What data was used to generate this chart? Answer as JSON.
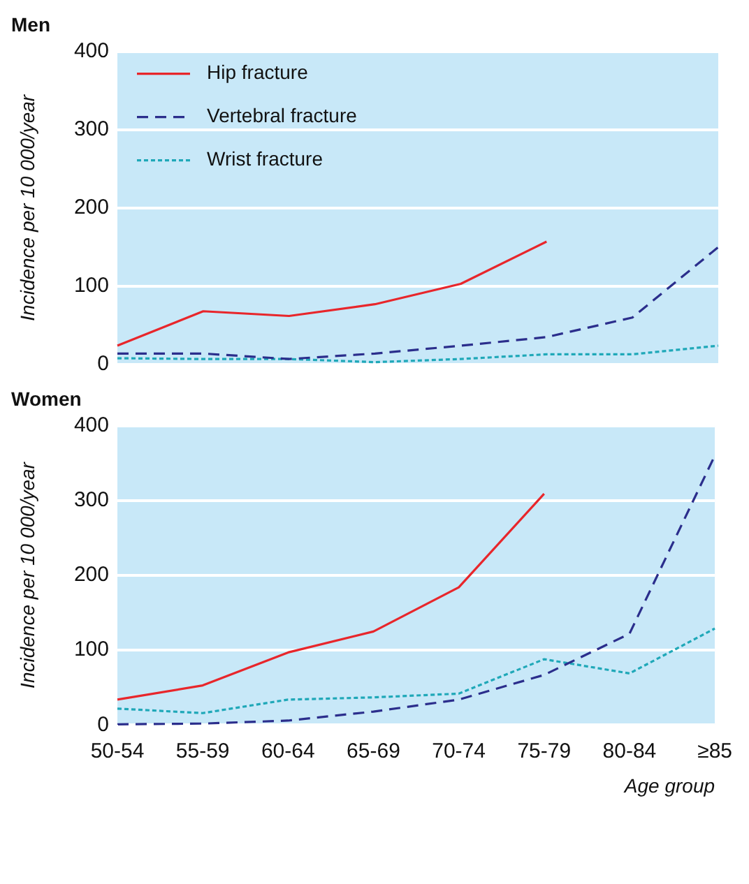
{
  "chart_data": [
    {
      "type": "line",
      "title": "Men",
      "ylabel": "Incidence per 10 000/year",
      "categories": [
        null,
        null,
        null,
        null,
        null,
        null,
        null,
        null
      ],
      "ylim": [
        0,
        400
      ],
      "yticks": [
        0,
        100,
        200,
        300,
        400
      ],
      "grid": "y",
      "legend": "top left",
      "tick_labels": "y",
      "marker": "none",
      "series": [
        {
          "name": "Hip fracture",
          "color": "#e8262b",
          "line_style": "solid",
          "values": [
            24,
            68,
            62,
            77,
            103,
            157,
            null,
            null
          ]
        },
        {
          "name": "Vertebral fracture",
          "color": "#2b2e8c",
          "line_style": "dashed",
          "values": [
            14,
            14,
            7,
            14,
            24,
            35,
            60,
            150
          ]
        },
        {
          "name": "Wrist fracture",
          "color": "#1fa8b8",
          "line_style": "dotted",
          "values": [
            8,
            7,
            7,
            3,
            7,
            13,
            13,
            24
          ]
        }
      ]
    },
    {
      "type": "line",
      "title": "Women",
      "ylabel": "Incidence per 10 000/year",
      "xlabel": "Age group",
      "categories": [
        "50-54",
        "55-59",
        "60-64",
        "65-69",
        "70-74",
        "75-79",
        "80-84",
        "≥85"
      ],
      "ylim": [
        0,
        400
      ],
      "yticks": [
        0,
        100,
        200,
        300,
        400
      ],
      "grid": "y",
      "marker": "none",
      "series": [
        {
          "color": "#e8262b",
          "line_style": "solid",
          "values": [
            34,
            53,
            97,
            125,
            184,
            309,
            null,
            null
          ]
        },
        {
          "color": "#2b2e8c",
          "line_style": "dashed",
          "values": [
            1,
            2,
            6,
            18,
            34,
            67,
            122,
            360
          ]
        },
        {
          "color": "#1fa8b8",
          "line_style": "dotted",
          "values": [
            22,
            16,
            34,
            37,
            42,
            88,
            69,
            129
          ]
        }
      ]
    }
  ]
}
